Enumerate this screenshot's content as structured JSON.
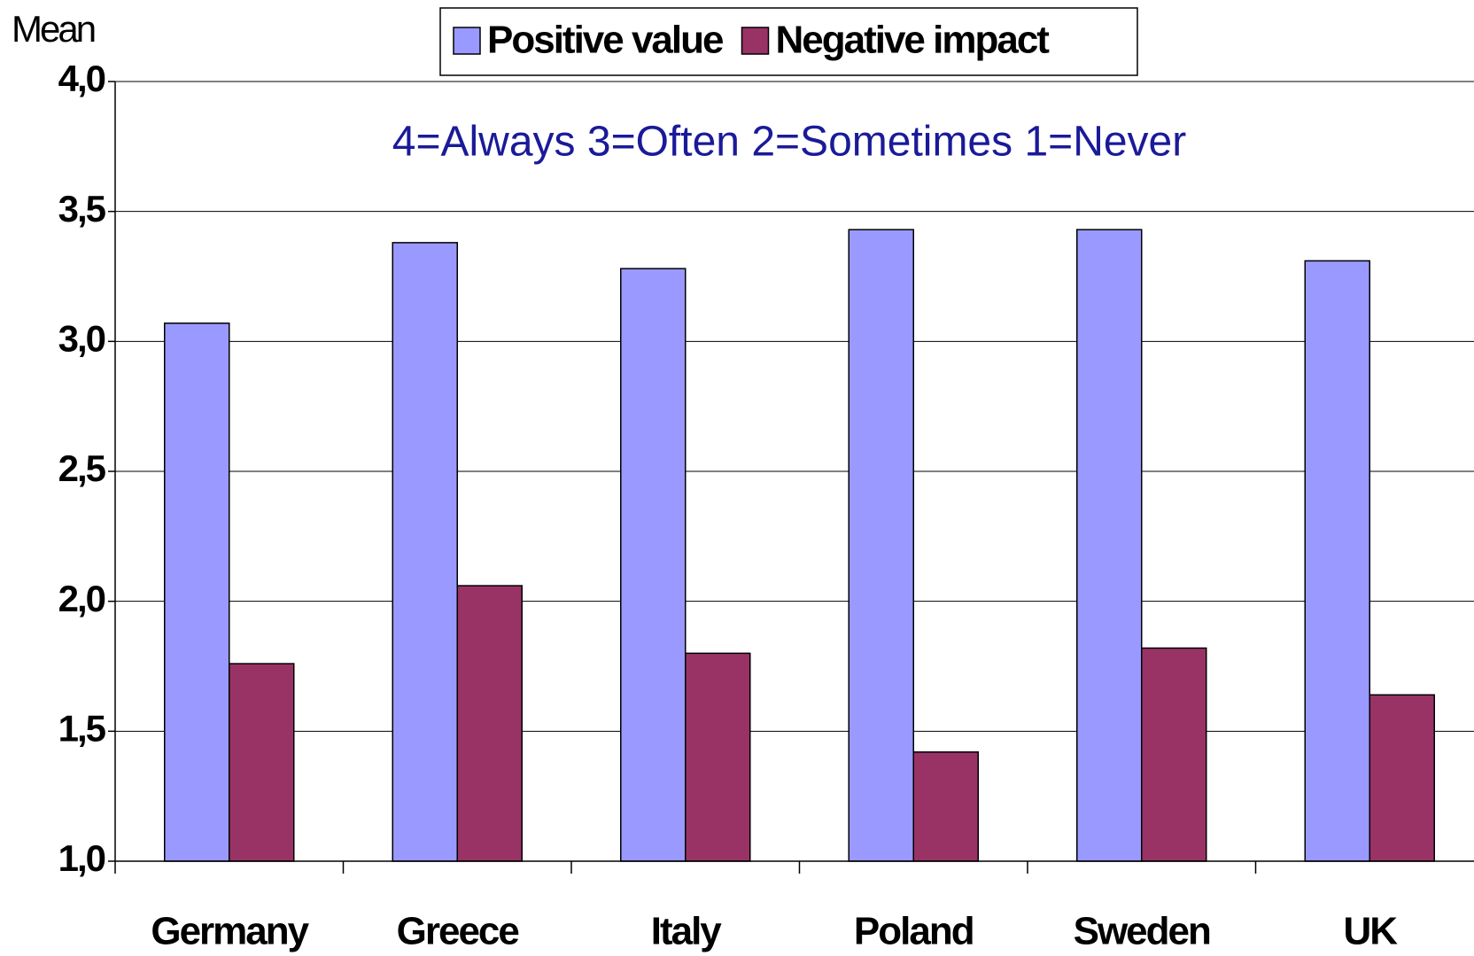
{
  "chart_data": {
    "type": "bar",
    "y_label": "Mean",
    "annotation": "4=Always 3=Often 2=Sometimes 1=Never",
    "categories": [
      "Germany",
      "Greece",
      "Italy",
      "Poland",
      "Sweden",
      "UK"
    ],
    "series": [
      {
        "name": "Positive value",
        "color": "#9999ff",
        "values": [
          3.07,
          3.38,
          3.28,
          3.43,
          3.43,
          3.31
        ]
      },
      {
        "name": "Negative impact",
        "color": "#993366",
        "values": [
          1.76,
          2.06,
          1.8,
          1.42,
          1.82,
          1.64
        ]
      }
    ],
    "ylim": [
      1,
      4
    ],
    "yticks": [
      {
        "value": 1,
        "label": "1,0"
      },
      {
        "value": 1.5,
        "label": "1,5"
      },
      {
        "value": 2,
        "label": "2,0"
      },
      {
        "value": 2.5,
        "label": "2,5"
      },
      {
        "value": 3,
        "label": "3,0"
      },
      {
        "value": 3.5,
        "label": "3,5"
      },
      {
        "value": 4,
        "label": "4,0"
      }
    ],
    "grid": true
  }
}
